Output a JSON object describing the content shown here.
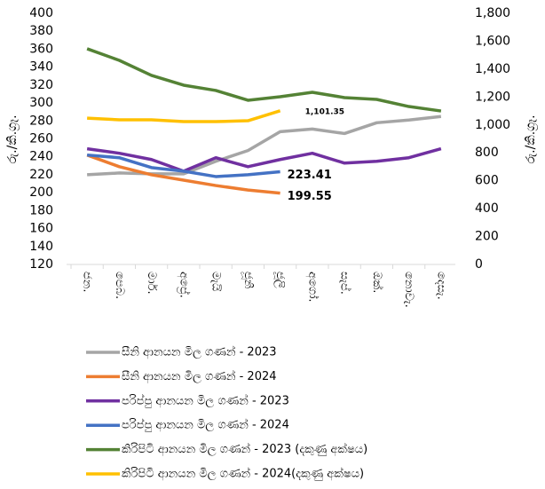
{
  "chart_data": {
    "type": "line",
    "y_label": "රු./කි.ග්‍රෑ.",
    "y2_label": "රු./කි.ග්‍රෑ.",
    "categories": [
      "ජන.",
      "පෙබ.",
      "මාර්.",
      "අප්‍රේ.",
      "මැයි",
      "ජූනි",
      "ජූලි",
      "අගෝ.",
      "සැප්.",
      "ඔක්.",
      "නොවැ.",
      "දෙසැ."
    ],
    "ylim": [
      120,
      400
    ],
    "yticks": [
      120,
      140,
      160,
      180,
      200,
      220,
      240,
      260,
      280,
      300,
      320,
      340,
      360,
      380,
      400
    ],
    "y2lim": [
      0,
      1800
    ],
    "y2ticks": [
      0,
      200,
      400,
      600,
      800,
      {
        "value": 1000,
        "label": "1,000"
      },
      {
        "value": 1200,
        "label": "1,200"
      },
      {
        "value": 1400,
        "label": "1,400"
      },
      {
        "value": 1600,
        "label": "1,600"
      },
      {
        "value": 1800,
        "label": "1,800"
      }
    ],
    "legend": "bottom",
    "series": [
      {
        "name": "සීනි  ආනයන මිල ගණන් - 2023",
        "color": "#a5a5a5",
        "values": [
          220,
          222,
          221,
          221,
          235,
          247,
          268,
          271,
          266,
          278,
          281,
          285
        ]
      },
      {
        "name": "සීනි  ආනයන මිල ගණන් - 2024",
        "color": "#ed7d31",
        "values": [
          242,
          229,
          220,
          214,
          208,
          203,
          199.55,
          null,
          null,
          null,
          null,
          null
        ]
      },
      {
        "name": "පරිප්පු ආනයන මිල ගණන් - 2023",
        "color": "#7030a0",
        "values": [
          249,
          244,
          237,
          224,
          239,
          229,
          237,
          244,
          233,
          235,
          239,
          249
        ]
      },
      {
        "name": "පරිප්පු ආනයන මිල ගණන් - 2024",
        "color": "#4472c4",
        "values": [
          242,
          239,
          228,
          224,
          218,
          220,
          223.41,
          null,
          null,
          null,
          null,
          null
        ]
      },
      {
        "name": "කිරිපිටි ආනයන මිල ගණන් - 2023 (දකුණු අක්ෂය)",
        "color": "#548235",
        "axis": "y2",
        "values": [
          1546,
          1463,
          1355,
          1285,
          1247,
          1177,
          1202,
          1234,
          1196,
          1183,
          1132,
          1100
        ]
      },
      {
        "name": "කිරිපිටි ආනයන මිල ගණන් - 2024(දකුණු අක්ෂය)",
        "color": "#ffc000",
        "axis": "y2",
        "values": [
          1049,
          1037,
          1037,
          1024,
          1024,
          1030,
          1101.35,
          null,
          null,
          null,
          null,
          null
        ],
        "value_labels": [
          null,
          null,
          null,
          null,
          null,
          null,
          "1,101.35",
          null,
          null,
          null,
          null,
          null
        ]
      }
    ]
  }
}
